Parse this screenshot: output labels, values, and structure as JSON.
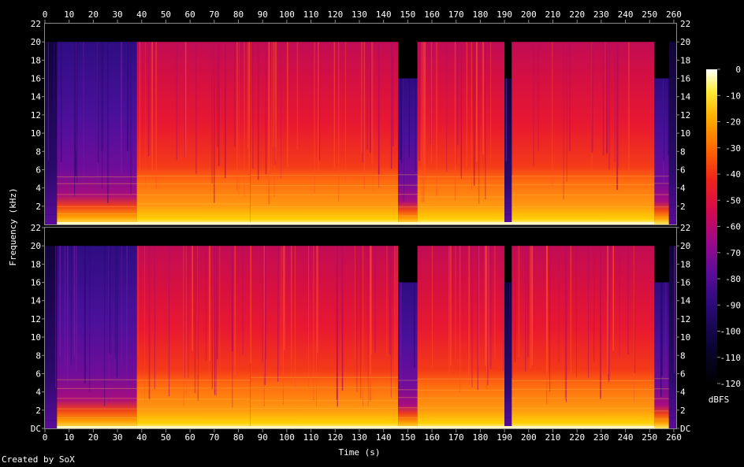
{
  "credit": "Created by SoX",
  "chart_data": {
    "type": "heatmap",
    "xlabel": "Time (s)",
    "ylabel": "Frequency (kHz)",
    "colorbar_label": "dBFS",
    "x_ticks": [
      0,
      10,
      20,
      30,
      40,
      50,
      60,
      70,
      80,
      90,
      100,
      110,
      120,
      130,
      140,
      150,
      160,
      170,
      180,
      190,
      200,
      210,
      220,
      230,
      240,
      250,
      260
    ],
    "xlim": [
      0,
      261
    ],
    "y_ticks": [
      "DC",
      "2",
      "4",
      "6",
      "8",
      "10",
      "12",
      "14",
      "16",
      "18",
      "20",
      "22"
    ],
    "ylim": [
      0,
      22
    ],
    "colorbar_ticks": [
      0,
      -10,
      -20,
      -30,
      -40,
      -50,
      -60,
      -70,
      -80,
      -90,
      -100,
      -110,
      -120
    ],
    "colorbar_range": [
      -120,
      0
    ],
    "channels": 2,
    "segments": [
      {
        "start": 0,
        "end": 5,
        "cutoff_khz": 20,
        "level": "quiet"
      },
      {
        "start": 5,
        "end": 38,
        "cutoff_khz": 20,
        "level": "soft"
      },
      {
        "start": 38,
        "end": 85,
        "cutoff_khz": 20,
        "level": "loud"
      },
      {
        "start": 85,
        "end": 146,
        "cutoff_khz": 20,
        "level": "loud"
      },
      {
        "start": 146,
        "end": 154,
        "cutoff_khz": 16,
        "level": "soft"
      },
      {
        "start": 154,
        "end": 190,
        "cutoff_khz": 20,
        "level": "loud"
      },
      {
        "start": 190,
        "end": 193,
        "cutoff_khz": 16,
        "level": "quiet"
      },
      {
        "start": 193,
        "end": 252,
        "cutoff_khz": 20,
        "level": "loud"
      },
      {
        "start": 252,
        "end": 258,
        "cutoff_khz": 16,
        "level": "soft"
      },
      {
        "start": 258,
        "end": 261,
        "cutoff_khz": 20,
        "level": "quiet"
      }
    ],
    "colors": {
      "background": "#000000",
      "text": "#ffffff",
      "frame": "#8a8a8a"
    }
  }
}
